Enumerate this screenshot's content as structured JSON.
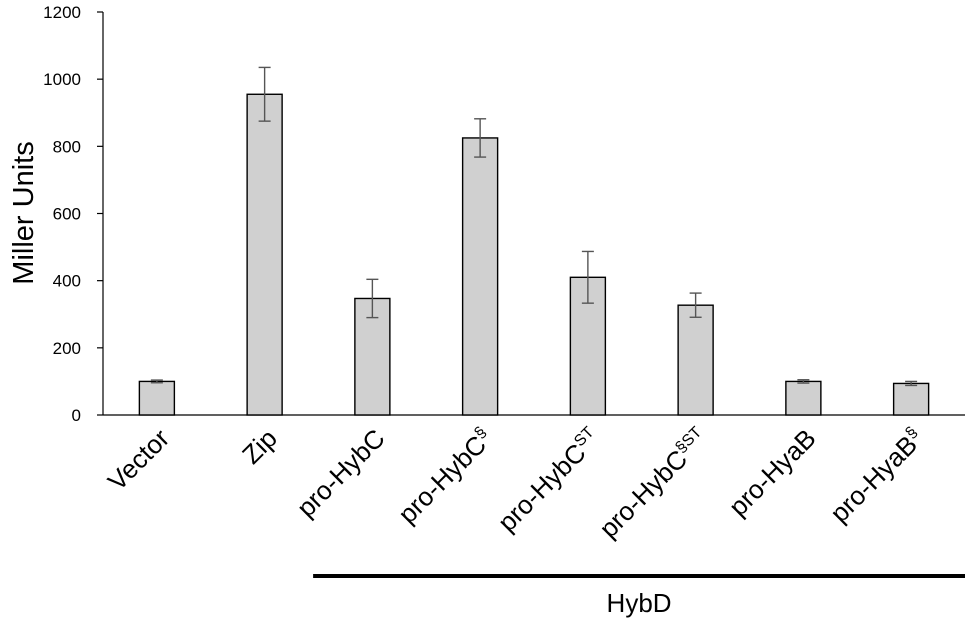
{
  "chart_data": {
    "type": "bar",
    "categories": [
      "Vector",
      "Zip",
      "pro-HybC",
      "pro-HybC§",
      "pro-HybC^ST",
      "pro-HybC§^ST",
      "pro-HyaB",
      "pro-HyaB§"
    ],
    "category_labels": [
      {
        "base": "Vector",
        "sup": ""
      },
      {
        "base": "Zip",
        "sup": ""
      },
      {
        "base": "pro-HybC",
        "sup": ""
      },
      {
        "base": "pro-HybC",
        "sup": "§"
      },
      {
        "base": "pro-HybC",
        "sup": "ST"
      },
      {
        "base": "pro-HybC",
        "sup": "§ST"
      },
      {
        "base": "pro-HyaB",
        "sup": ""
      },
      {
        "base": "pro-HyaB",
        "sup": "§"
      }
    ],
    "values": [
      100,
      955,
      347,
      825,
      410,
      327,
      100,
      94
    ],
    "errors": [
      4,
      80,
      57,
      57,
      77,
      36,
      5,
      6
    ],
    "title": "",
    "xlabel": "",
    "ylabel": "Miller Units",
    "ylim": [
      0,
      1200
    ],
    "yticks": [
      0,
      200,
      400,
      600,
      800,
      1000,
      1200
    ],
    "grid": false,
    "legend": "none",
    "bar_color": "#d0d0d0",
    "bar_edge_color": "#000000",
    "error_color": "#555555",
    "group_annotation": {
      "label": "HybD",
      "from_category": 2,
      "to_category": 7
    }
  }
}
